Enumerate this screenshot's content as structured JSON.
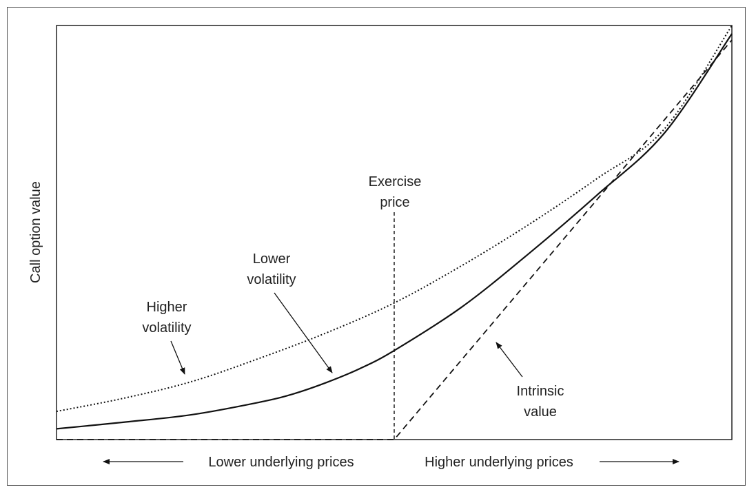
{
  "chart_data": {
    "type": "line",
    "xlabel_left": "Lower underlying prices",
    "xlabel_right": "Higher underlying prices",
    "ylabel": "Call option value",
    "x_domain": [
      0,
      100
    ],
    "y_domain": [
      0,
      100
    ],
    "exercise_price_x": 50,
    "series": [
      {
        "key": "higher",
        "style": "dotted",
        "points": [
          [
            0,
            6.8
          ],
          [
            10,
            10
          ],
          [
            20,
            14
          ],
          [
            30,
            19.6
          ],
          [
            40,
            25.8
          ],
          [
            50,
            33
          ],
          [
            60,
            42
          ],
          [
            70,
            52
          ],
          [
            80,
            63
          ],
          [
            90,
            75
          ],
          [
            100,
            100
          ]
        ]
      },
      {
        "key": "lower",
        "style": "solid",
        "points": [
          [
            0,
            2.6
          ],
          [
            10,
            4.2
          ],
          [
            20,
            6
          ],
          [
            30,
            9
          ],
          [
            35,
            11
          ],
          [
            40,
            13.8
          ],
          [
            45,
            17.2
          ],
          [
            50,
            21.5
          ],
          [
            60,
            32
          ],
          [
            70,
            45
          ],
          [
            80,
            59
          ],
          [
            90,
            74
          ],
          [
            100,
            98
          ]
        ]
      },
      {
        "key": "intrinsic",
        "style": "dashed",
        "points": [
          [
            0,
            0
          ],
          [
            50,
            0
          ],
          [
            100,
            96.5
          ]
        ]
      }
    ],
    "annotations": {
      "higher_volatility": [
        "Higher",
        "volatility"
      ],
      "lower_volatility": [
        "Lower",
        "volatility"
      ],
      "intrinsic_value": [
        "Intrinsic",
        "value"
      ],
      "exercise_price": [
        "Exercise",
        "price"
      ]
    },
    "colors": {
      "ink": "#111111",
      "frame": "#555555"
    }
  }
}
